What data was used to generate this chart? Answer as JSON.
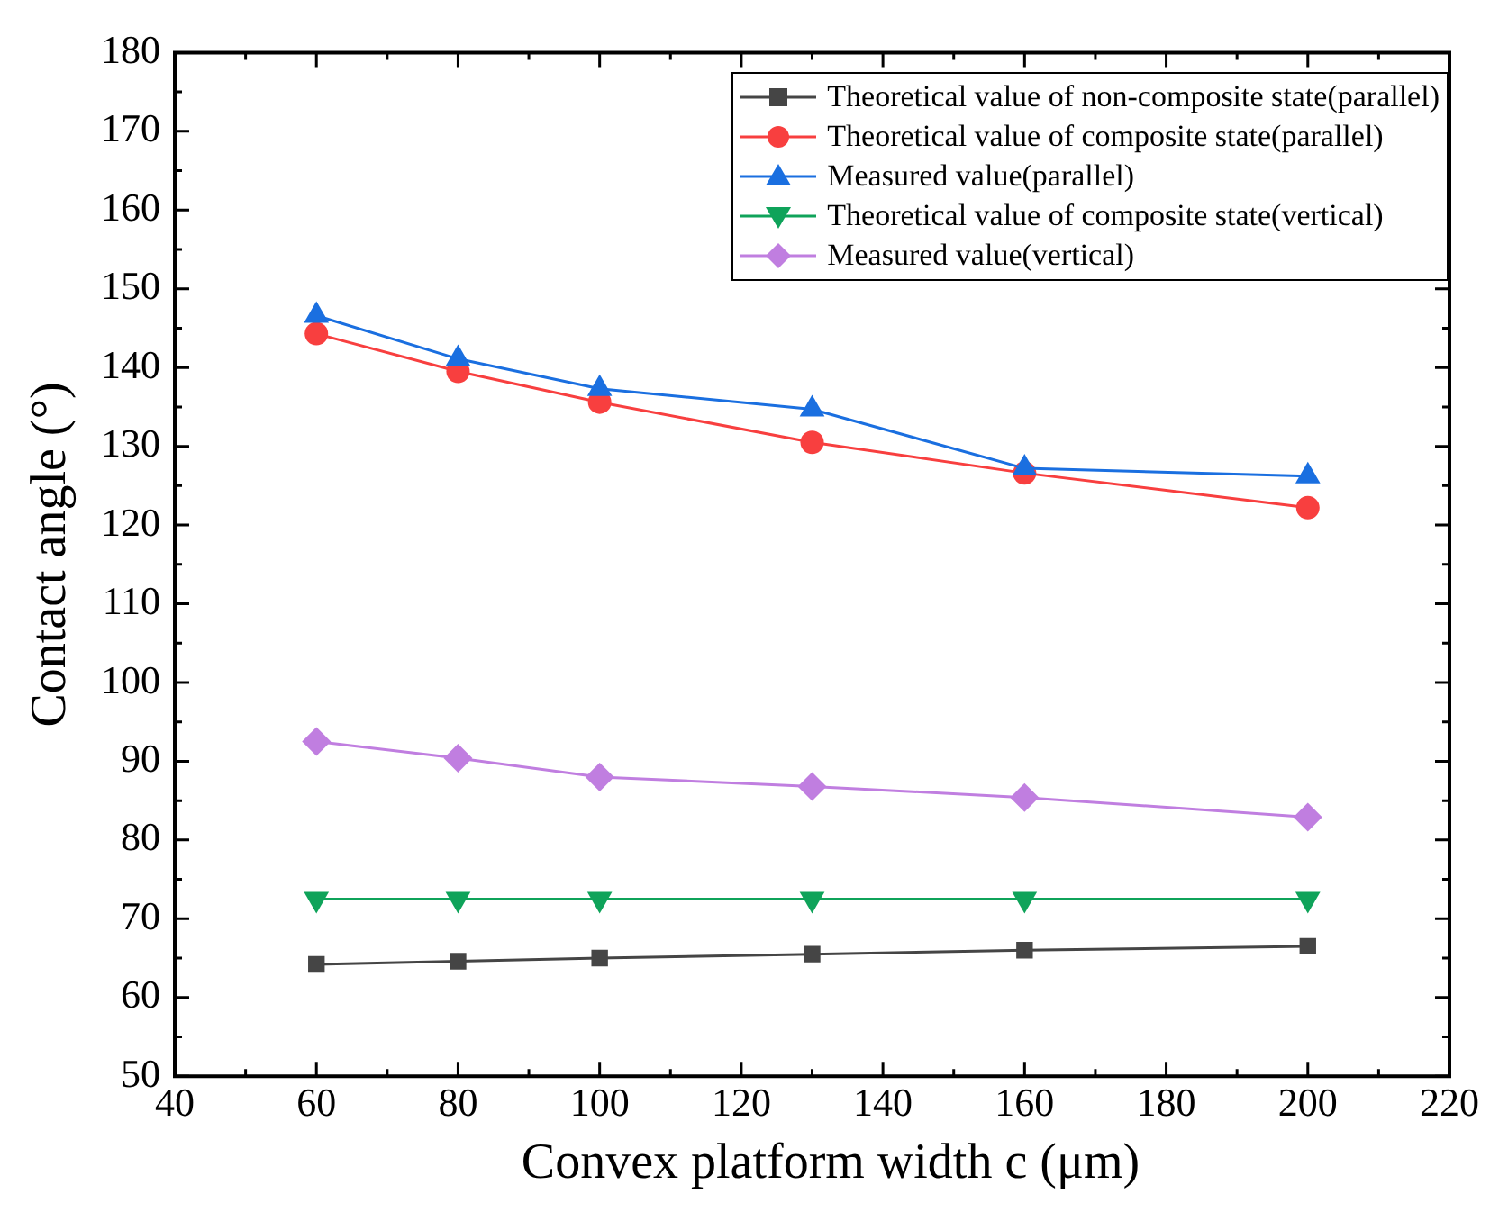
{
  "chart_data": {
    "type": "line",
    "xlabel": "Convex platform width c (μm)",
    "ylabel": "Contact angle (°)",
    "x": [
      60,
      80,
      100,
      130,
      160,
      200
    ],
    "xlim": [
      40,
      220
    ],
    "xticks": [
      40,
      60,
      80,
      100,
      120,
      140,
      160,
      180,
      200,
      220
    ],
    "ylim": [
      50,
      180
    ],
    "yticks": [
      50,
      60,
      70,
      80,
      90,
      100,
      110,
      120,
      130,
      140,
      150,
      160,
      170,
      180
    ],
    "grid": false,
    "legend": "top right",
    "line_style": "solid",
    "series": [
      {
        "name": "Theoretical value of non-composite state(parallel)",
        "color": "#454545",
        "marker": "square",
        "values": [
          64.2,
          64.6,
          65.0,
          65.5,
          66.0,
          66.5
        ]
      },
      {
        "name": "Theoretical value of composite state(parallel)",
        "color": "#f83f3f",
        "marker": "circle",
        "values": [
          144.3,
          139.5,
          135.6,
          130.5,
          126.6,
          122.2
        ]
      },
      {
        "name": "Measured value(parallel)",
        "color": "#1a6fe0",
        "marker": "triangle",
        "values": [
          146.6,
          141.1,
          137.3,
          134.7,
          127.2,
          126.2
        ]
      },
      {
        "name": "Theoretical value of composite state(vertical)",
        "color": "#0fa35a",
        "marker": "triangle-down",
        "values": [
          72.5,
          72.5,
          72.5,
          72.5,
          72.5,
          72.5
        ]
      },
      {
        "name": "Measured value(vertical)",
        "color": "#c07ee0",
        "marker": "diamond",
        "values": [
          92.5,
          90.4,
          88.0,
          86.8,
          85.4,
          82.9
        ]
      }
    ]
  }
}
